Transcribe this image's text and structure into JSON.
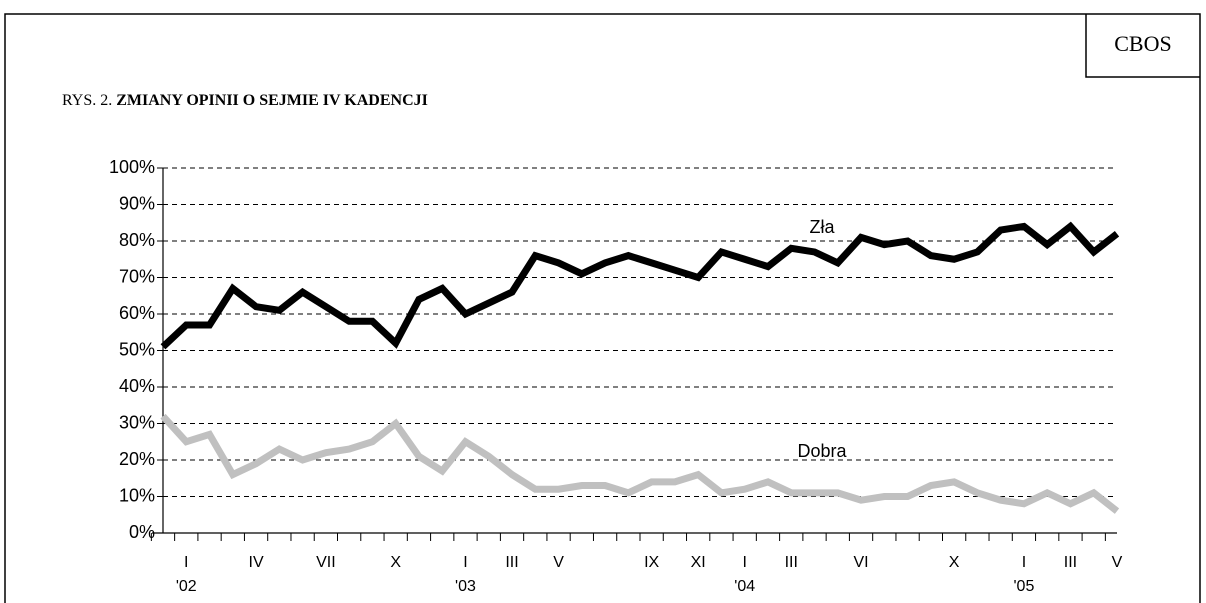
{
  "source": "CBOS",
  "chart_data": {
    "type": "line",
    "title_prefix": "RYS. 2.",
    "title": "ZMIANY OPINII O SEJMIE IV KADENCJI",
    "categories": [
      null,
      "I",
      null,
      null,
      "IV",
      null,
      null,
      "VII",
      null,
      null,
      "X",
      null,
      null,
      "I",
      null,
      "III",
      null,
      "V",
      null,
      null,
      null,
      "IX",
      null,
      "XI",
      null,
      "I",
      null,
      "III",
      null,
      null,
      "VI",
      null,
      null,
      null,
      "X",
      null,
      null,
      "I",
      null,
      "III",
      null,
      "V"
    ],
    "year_labels": [
      null,
      "'02",
      null,
      null,
      null,
      null,
      null,
      null,
      null,
      null,
      null,
      null,
      null,
      "'03",
      null,
      null,
      null,
      null,
      null,
      null,
      null,
      null,
      null,
      null,
      null,
      "'04",
      null,
      null,
      null,
      null,
      null,
      null,
      null,
      null,
      null,
      null,
      null,
      "'05",
      null,
      null,
      null,
      null
    ],
    "series": [
      {
        "name": "Zła",
        "color": "#000000",
        "values": [
          51,
          57,
          57,
          67,
          62,
          61,
          66,
          62,
          58,
          58,
          52,
          64,
          67,
          60,
          63,
          66,
          76,
          74,
          71,
          74,
          76,
          74,
          72,
          70,
          77,
          75,
          73,
          78,
          77,
          74,
          81,
          79,
          80,
          76,
          75,
          77,
          83,
          84,
          79,
          84,
          77,
          82
        ]
      },
      {
        "name": "Dobra",
        "color": "#c0c0c0",
        "values": [
          32,
          25,
          27,
          16,
          19,
          23,
          20,
          22,
          23,
          25,
          30,
          21,
          17,
          25,
          21,
          16,
          12,
          12,
          13,
          13,
          11,
          14,
          14,
          16,
          11,
          12,
          14,
          11,
          11,
          11,
          9,
          10,
          10,
          13,
          14,
          11,
          9,
          8,
          11,
          8,
          11,
          6
        ]
      }
    ],
    "ylim": [
      0,
      100
    ],
    "yticks": [
      {
        "value": 0,
        "label": "0%"
      },
      {
        "value": 10,
        "label": "10%"
      },
      {
        "value": 20,
        "label": "20%"
      },
      {
        "value": 30,
        "label": "30%"
      },
      {
        "value": 40,
        "label": "40%"
      },
      {
        "value": 50,
        "label": "50%"
      },
      {
        "value": 60,
        "label": "60%"
      },
      {
        "value": 70,
        "label": "70%"
      },
      {
        "value": 80,
        "label": "80%"
      },
      {
        "value": 90,
        "label": "90%"
      },
      {
        "value": 100,
        "label": "100%"
      }
    ],
    "grid": true
  }
}
